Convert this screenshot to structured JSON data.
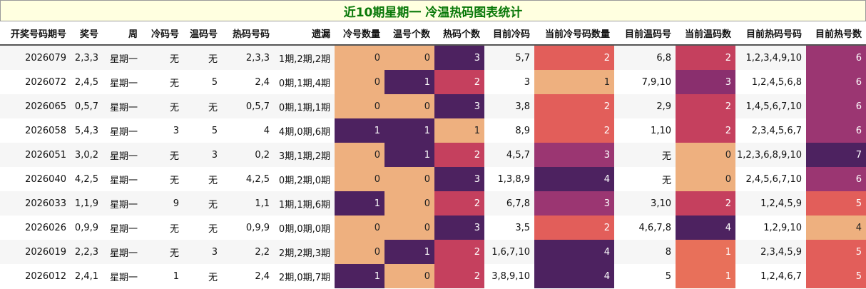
{
  "title": "近10期星期一 冷温热码图表统计",
  "columns": [
    "开奖号码期号",
    "奖号",
    "周",
    "冷码号",
    "温码号",
    "热码号码",
    "遗漏",
    "冷号数量",
    "温号个数",
    "热码个数",
    "目前冷码",
    "当前冷号码数量",
    "目前温码号",
    "当前温码数",
    "目前热码号码",
    "目前热号数"
  ],
  "rows": [
    [
      "2026079",
      "2,3,3",
      "星期一",
      "无",
      "无",
      "2,3,3",
      "1期,2期,2期",
      "0",
      "0",
      "3",
      "5,7",
      "2",
      "6,8",
      "2",
      "1,2,3,4,9,10",
      "6"
    ],
    [
      "2026072",
      "2,4,5",
      "星期一",
      "无",
      "5",
      "2,4",
      "0期,1期,4期",
      "0",
      "1",
      "2",
      "3",
      "1",
      "7,9,10",
      "3",
      "1,2,4,5,6,8",
      "6"
    ],
    [
      "2026065",
      "0,5,7",
      "星期一",
      "无",
      "无",
      "0,5,7",
      "0期,1期,1期",
      "0",
      "0",
      "3",
      "3,8",
      "2",
      "2,9",
      "2",
      "1,4,5,6,7,10",
      "6"
    ],
    [
      "2026058",
      "5,4,3",
      "星期一",
      "3",
      "5",
      "4",
      "4期,0期,6期",
      "1",
      "1",
      "1",
      "8,9",
      "2",
      "1,10",
      "2",
      "2,3,4,5,6,7",
      "6"
    ],
    [
      "2026051",
      "3,0,2",
      "星期一",
      "无",
      "3",
      "0,2",
      "3期,1期,2期",
      "0",
      "1",
      "2",
      "4,5,7",
      "3",
      "无",
      "0",
      "1,2,3,6,8,9,10",
      "7"
    ],
    [
      "2026040",
      "4,2,5",
      "星期一",
      "无",
      "无",
      "4,2,5",
      "0期,2期,0期",
      "0",
      "0",
      "3",
      "1,3,8,9",
      "4",
      "无",
      "0",
      "2,4,5,6,7,10",
      "6"
    ],
    [
      "2026033",
      "1,1,9",
      "星期一",
      "9",
      "无",
      "1,1",
      "1期,1期,6期",
      "1",
      "0",
      "2",
      "6,7,8",
      "3",
      "3,10",
      "2",
      "1,2,4,5,9",
      "5"
    ],
    [
      "2026026",
      "0,9,9",
      "星期一",
      "无",
      "无",
      "0,9,9",
      "0期,0期,0期",
      "0",
      "0",
      "3",
      "3,5",
      "2",
      "4,6,7,8",
      "4",
      "1,2,9,10",
      "4"
    ],
    [
      "2026019",
      "2,2,3",
      "星期一",
      "无",
      "3",
      "2,2",
      "2期,2期,3期",
      "0",
      "1",
      "2",
      "1,6,7,10",
      "4",
      "8",
      "1",
      "2,3,4,5,9",
      "5"
    ],
    [
      "2026012",
      "2,4,1",
      "星期一",
      "1",
      "无",
      "2,4",
      "2期,0期,7期",
      "1",
      "0",
      "2",
      "3,8,9,10",
      "4",
      "5",
      "1",
      "1,2,4,6,7",
      "5"
    ]
  ],
  "heat_colors": {
    "0": "#eeb07f",
    "1": "#4d2260",
    "2": "#c5405e",
    "3": "#4d2260",
    "count_low": "#eeb07f",
    "count_high": "#4d2260"
  },
  "cell_colors": {
    "7": [
      "#eeb07f",
      "#eeb07f",
      "#eeb07f",
      "#4d2260",
      "#eeb07f",
      "#eeb07f",
      "#4d2260",
      "#eeb07f",
      "#eeb07f",
      "#4d2260"
    ],
    "8": [
      "#eeb07f",
      "#4d2260",
      "#eeb07f",
      "#4d2260",
      "#4d2260",
      "#eeb07f",
      "#eeb07f",
      "#eeb07f",
      "#4d2260",
      "#eeb07f"
    ],
    "9": [
      "#4d2260",
      "#c5405e",
      "#4d2260",
      "#eeb07f",
      "#c5405e",
      "#4d2260",
      "#c5405e",
      "#4d2260",
      "#c5405e",
      "#c5405e"
    ],
    "11": [
      "#e25e5a",
      "#eeb07f",
      "#e25e5a",
      "#e25e5a",
      "#9b3672",
      "#4d2260",
      "#9b3672",
      "#e25e5a",
      "#4d2260",
      "#4d2260"
    ],
    "13": [
      "#c5405e",
      "#8a2f6e",
      "#c5405e",
      "#c5405e",
      "#eeb07f",
      "#eeb07f",
      "#c5405e",
      "#4d2260",
      "#e8705a",
      "#e8705a"
    ],
    "15": [
      "#9b3672",
      "#9b3672",
      "#9b3672",
      "#9b3672",
      "#4d2260",
      "#9b3672",
      "#e25e5a",
      "#eeb07f",
      "#e25e5a",
      "#e25e5a"
    ]
  }
}
